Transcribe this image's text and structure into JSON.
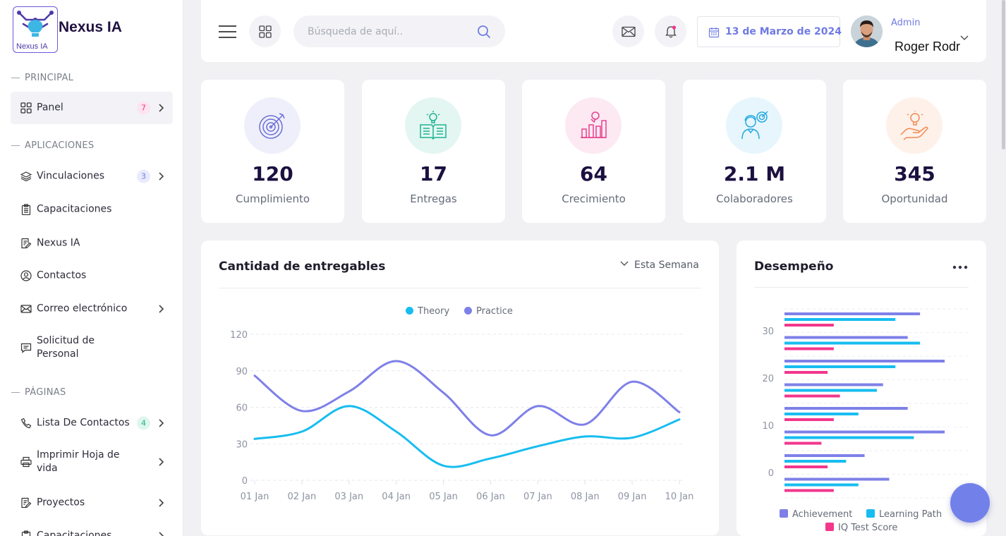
{
  "app": {
    "name": "Nexus IA",
    "logo_sub": "Nexus IA"
  },
  "sidebar": {
    "sections": [
      {
        "label": "PRINCIPAL"
      },
      {
        "label": "APLICACIONES"
      },
      {
        "label": "PÁGINAS"
      }
    ],
    "items": [
      {
        "label": "Panel",
        "badge": "7",
        "icon": "grid-icon"
      },
      {
        "label": "Vinculaciones",
        "badge": "3",
        "icon": "layers-icon"
      },
      {
        "label": "Capacitaciones",
        "icon": "clipboard-icon"
      },
      {
        "label": "Nexus IA",
        "icon": "document-edit-icon"
      },
      {
        "label": "Contactos",
        "icon": "user-circle-icon"
      },
      {
        "label": "Correo electrónico",
        "icon": "mail-icon"
      },
      {
        "label": "Solicitud de\nPersonal",
        "icon": "chat-icon"
      },
      {
        "label": "Lista De Contactos",
        "badge": "4",
        "icon": "phone-icon"
      },
      {
        "label": "Imprimir Hoja de\nvida",
        "icon": "printer-icon"
      },
      {
        "label": "Proyectos",
        "icon": "document-edit-icon"
      },
      {
        "label": "Capacitaciones",
        "icon": "clipboard-icon"
      }
    ],
    "colors": {
      "badge_pink": "#e6408f",
      "badge_blue": "#6f7be3",
      "badge_green": "#19b47b"
    }
  },
  "header": {
    "search_placeholder": "Búsqueda de aquí..",
    "date": "13 de Marzo de 2024",
    "user_role": "Admin",
    "user_name": "Roger Rodr"
  },
  "stats": [
    {
      "value": "120",
      "label": "Cumplimiento",
      "icon": "target-icon",
      "color": "#6c6fd8",
      "bg": "#efeffb"
    },
    {
      "value": "17",
      "label": "Entregas",
      "icon": "book-bulb-icon",
      "color": "#1eb493",
      "bg": "#e3f6f1"
    },
    {
      "value": "64",
      "label": "Crecimiento",
      "icon": "growth-chart-icon",
      "color": "#e6408f",
      "bg": "#fde9f2"
    },
    {
      "value": "2.1 M",
      "label": "Colaboradores",
      "icon": "person-target-icon",
      "color": "#27a9e1",
      "bg": "#e6f6fc"
    },
    {
      "value": "345",
      "label": "Oportunidad",
      "icon": "hand-bulb-icon",
      "color": "#f28a52",
      "bg": "#fef1ea"
    }
  ],
  "deliverables": {
    "title": "Cantidad de entregables",
    "period": "Esta Semana"
  },
  "performance": {
    "title": "Desempeño"
  },
  "chart_data": [
    {
      "type": "line",
      "title": "Cantidad de entregables",
      "x": [
        "01 Jan",
        "02 Jan",
        "03 Jan",
        "04 Jan",
        "05 Jan",
        "06 Jan",
        "07 Jan",
        "08 Jan",
        "09 Jan",
        "10 Jan"
      ],
      "series": [
        {
          "name": "Theory",
          "color": "#17bdf0",
          "values": [
            34,
            40,
            61,
            40,
            12,
            18,
            28,
            36,
            35,
            50
          ]
        },
        {
          "name": "Practice",
          "color": "#7e80e8",
          "values": [
            86,
            57,
            73,
            98,
            72,
            37,
            61,
            46,
            81,
            56
          ]
        }
      ],
      "yticks": [
        0,
        30,
        60,
        90,
        120
      ],
      "ylim": [
        0,
        120
      ],
      "grid": true,
      "legend": "top-center"
    },
    {
      "type": "bar",
      "orientation": "horizontal",
      "title": "Desempeño",
      "yticks": [
        0,
        10,
        20,
        30
      ],
      "groups": 8,
      "series": [
        {
          "name": "Achievement",
          "color": "#7e80e8",
          "values": [
            22,
            20,
            26,
            16,
            20,
            26,
            13,
            17
          ]
        },
        {
          "name": "Learning Path",
          "color": "#17bdf0",
          "values": [
            18,
            22,
            18,
            15,
            12,
            21,
            10,
            12
          ]
        },
        {
          "name": "IQ Test Score",
          "color": "#f2378d",
          "values": [
            8,
            8,
            7,
            9,
            8,
            6,
            7,
            8
          ]
        }
      ],
      "xlim": [
        0,
        30
      ],
      "grid": true,
      "legend": "bottom"
    }
  ]
}
